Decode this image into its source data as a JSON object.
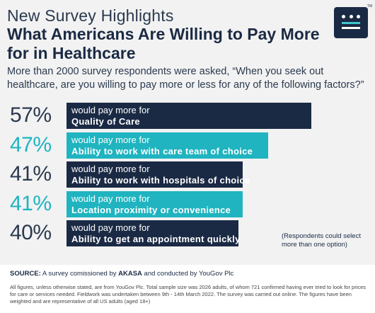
{
  "header": {
    "title_line1": "New Survey Highlights",
    "title_line2": "What Americans Are Willing to Pay More for in Healthcare",
    "intro": "More than 2000 survey respondents were asked, “When you seek out healthcare, are you willing to pay more or less for any of the following factors?”"
  },
  "logo": {
    "icon": "akasa-logo",
    "tm": "TM",
    "bg_color": "#1b2a44",
    "accent_color": "#3ec6cf"
  },
  "chart_data": {
    "type": "bar",
    "orientation": "horizontal",
    "prefix": "would pay more for",
    "categories": [
      "Quality of Care",
      "Ability to work with care team of choice",
      "Ability to work with hospitals of choice",
      "Location proximity or convenience",
      "Ability to get an appointment quickly"
    ],
    "values": [
      57,
      47,
      41,
      41,
      40
    ],
    "labels": [
      "57%",
      "47%",
      "41%",
      "41%",
      "40%"
    ],
    "bar_colors": [
      "#1b2a44",
      "#1fb4c0",
      "#1b2a44",
      "#1fb4c0",
      "#1b2a44"
    ],
    "label_colors": [
      "#2b3a4f",
      "#1fb4c0",
      "#2b3a4f",
      "#1fb4c0",
      "#2b3a4f"
    ],
    "xlim": [
      0,
      57
    ],
    "annotation": "(Respondents could select more than one option)"
  },
  "footer": {
    "source_label": "SOURCE:",
    "source_a": " A survey comissioned by ",
    "source_brand": "AKASA",
    "source_b": " and conducted by YouGov Plc",
    "fine_print": "All figures, unless otherwise stated, are from YouGov Plc. Total sample size was 2026 adults, of whom 721 confirmed having ever tried to look for prices for care or services needed. Fieldwork was undertaken between 9th - 14th March 2022.  The survey was carried out online. The figures have been weighted and are representative of all US adults (aged 18+)"
  }
}
